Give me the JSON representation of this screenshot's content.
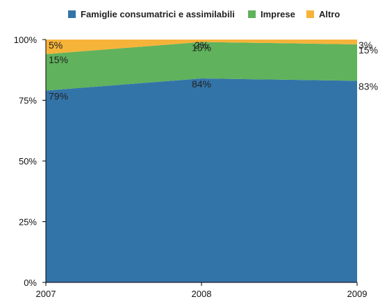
{
  "chart_data": {
    "type": "area",
    "stacked": true,
    "percent": true,
    "x": [
      "2007",
      "2008",
      "2009"
    ],
    "series": [
      {
        "name": "Famiglie consumatrici e assimilabili",
        "values": [
          79,
          84,
          83
        ],
        "labels": [
          "79%",
          "84%",
          "83%"
        ],
        "color": "#3374a8"
      },
      {
        "name": "Imprese",
        "values": [
          15,
          15,
          15
        ],
        "labels": [
          "15%",
          "15%",
          "15%"
        ],
        "color": "#60b25c"
      },
      {
        "name": "Altro",
        "values": [
          5,
          2,
          3
        ],
        "labels": [
          "5%",
          "2%",
          "3%"
        ],
        "color": "#f6b33a"
      }
    ],
    "ylim": [
      0,
      100
    ],
    "yticks": [
      "0%",
      "25%",
      "50%",
      "75%",
      "100%"
    ],
    "legend_position": "top",
    "grid": false
  }
}
